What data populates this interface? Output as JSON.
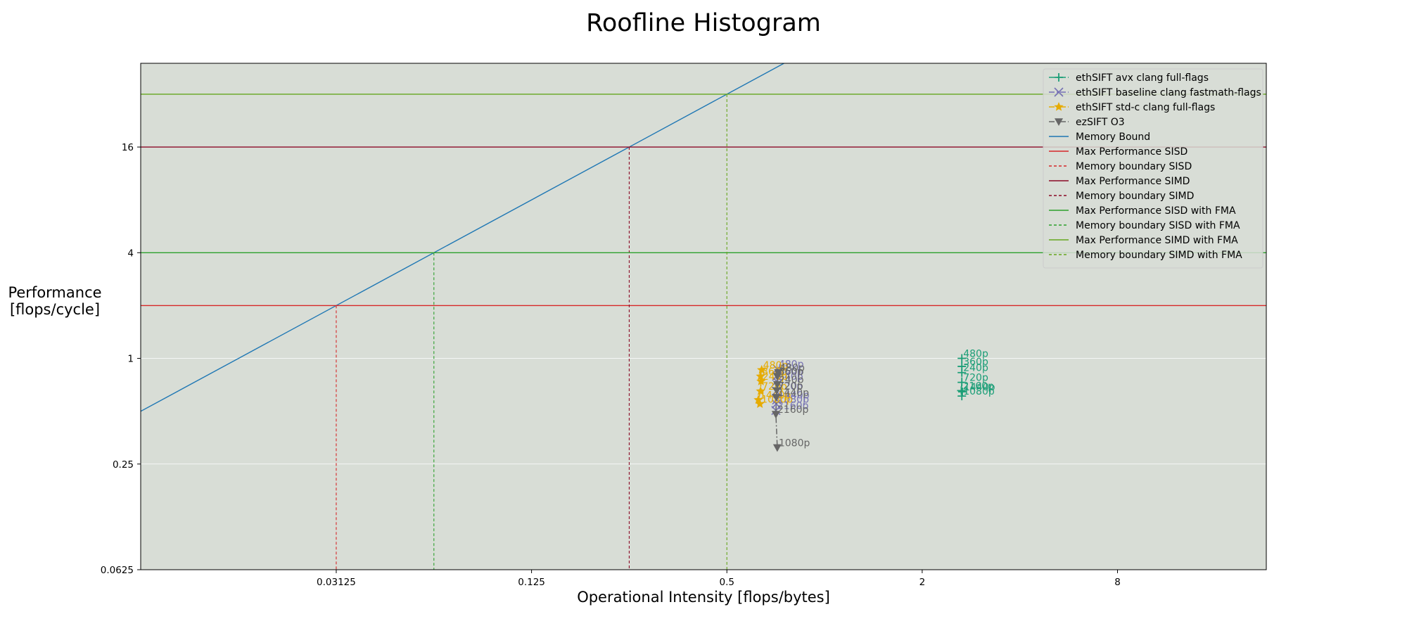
{
  "chart_data": {
    "type": "line",
    "title": "Roofline Histogram",
    "xlabel": "Operational Intensity [flops/bytes]",
    "ylabel_lines": [
      "Performance",
      "[flops/cycle]"
    ],
    "xscale": "log2",
    "yscale": "log2",
    "xlim": [
      0.0078,
      23
    ],
    "ylim": [
      0.0625,
      48
    ],
    "xticks": [
      {
        "v": 0.03125,
        "label": "0.03125"
      },
      {
        "v": 0.125,
        "label": "0.125"
      },
      {
        "v": 0.5,
        "label": "0.5"
      },
      {
        "v": 2,
        "label": "2"
      },
      {
        "v": 8,
        "label": "8"
      }
    ],
    "yticks": [
      {
        "v": 0.0625,
        "label": "0.0625"
      },
      {
        "v": 0.25,
        "label": "0.25"
      },
      {
        "v": 1,
        "label": "1"
      },
      {
        "v": 4,
        "label": "4"
      },
      {
        "v": 16,
        "label": "16"
      }
    ],
    "grid": "horizontal",
    "legend_position": "top-right",
    "background_color": "#d8ddd6",
    "series": [
      {
        "name": "ethSIFT avx clang full-flags",
        "color": "#1b9e77",
        "marker": "plus",
        "linestyle": "dashdot",
        "points": [
          {
            "x": 2.65,
            "y": 1.0,
            "label": "480p"
          },
          {
            "x": 2.65,
            "y": 0.9,
            "label": "360p"
          },
          {
            "x": 2.65,
            "y": 0.83,
            "label": "240p"
          },
          {
            "x": 2.65,
            "y": 0.73,
            "label": "720p"
          },
          {
            "x": 2.64,
            "y": 0.655,
            "label": "2160p"
          },
          {
            "x": 2.66,
            "y": 0.645,
            "label": "1440p"
          },
          {
            "x": 2.65,
            "y": 0.61,
            "label": "1080p"
          }
        ]
      },
      {
        "name": "ethSIFT baseline clang fastmath-flags",
        "color": "#7570b3",
        "marker": "x",
        "linestyle": "dashdot",
        "points": [
          {
            "x": 0.715,
            "y": 0.87,
            "label": "480p"
          },
          {
            "x": 0.712,
            "y": 0.79,
            "label": "360p"
          },
          {
            "x": 0.712,
            "y": 0.74,
            "label": "240p"
          },
          {
            "x": 0.71,
            "y": 0.65,
            "label": "720p"
          },
          {
            "x": 0.712,
            "y": 0.58,
            "label": "1440p"
          },
          {
            "x": 0.71,
            "y": 0.55,
            "label": "1080p"
          },
          {
            "x": 0.708,
            "y": 0.505,
            "label": "2160p"
          }
        ]
      },
      {
        "name": "ethSIFT std-c clang full-flags",
        "color": "#e6ab02",
        "marker": "star",
        "linestyle": "dashdot",
        "points": [
          {
            "x": 0.64,
            "y": 0.86,
            "label": "480p"
          },
          {
            "x": 0.635,
            "y": 0.79,
            "label": "360p"
          },
          {
            "x": 0.637,
            "y": 0.74,
            "label": "240p"
          },
          {
            "x": 0.635,
            "y": 0.65,
            "label": "720p"
          },
          {
            "x": 0.625,
            "y": 0.58,
            "label": "1440p"
          },
          {
            "x": 0.632,
            "y": 0.55,
            "label": "1080p"
          }
        ]
      },
      {
        "name": "ezSIFT O3",
        "color": "#666666",
        "marker": "triangle-down",
        "linestyle": "dashdot",
        "points": [
          {
            "x": 0.72,
            "y": 0.83,
            "label": "480p"
          },
          {
            "x": 0.715,
            "y": 0.79,
            "label": "360p"
          },
          {
            "x": 0.715,
            "y": 0.71,
            "label": "240p"
          },
          {
            "x": 0.712,
            "y": 0.655,
            "label": "720p"
          },
          {
            "x": 0.71,
            "y": 0.6,
            "label": "1440p"
          },
          {
            "x": 0.708,
            "y": 0.48,
            "label": "2160p"
          },
          {
            "x": 0.715,
            "y": 0.31,
            "label": "1080p"
          }
        ]
      }
    ],
    "rooflines": [
      {
        "name": "Memory Bound",
        "kind": "diagonal",
        "slope_bytes_per_cycle": 64,
        "color": "#1f77b4",
        "style": "solid"
      },
      {
        "name": "Max Performance SISD",
        "kind": "horizontal",
        "y": 2,
        "color": "#d62728",
        "style": "solid"
      },
      {
        "name": "Memory boundary SISD",
        "kind": "vertical",
        "x": 0.03125,
        "y_top": 2,
        "color": "#d62728",
        "style": "dashed"
      },
      {
        "name": "Max Performance SIMD",
        "kind": "horizontal",
        "y": 16,
        "color": "#8b0a26",
        "style": "solid"
      },
      {
        "name": "Memory boundary SIMD",
        "kind": "vertical",
        "x": 0.25,
        "y_top": 16,
        "color": "#8b0a26",
        "style": "dashed"
      },
      {
        "name": "Max Performance SISD with FMA",
        "kind": "horizontal",
        "y": 4,
        "color": "#2ca02c",
        "style": "solid"
      },
      {
        "name": "Memory boundary SISD with FMA",
        "kind": "vertical",
        "x": 0.0625,
        "y_top": 4,
        "color": "#2ca02c",
        "style": "dashed"
      },
      {
        "name": "Max Performance SIMD with FMA",
        "kind": "horizontal",
        "y": 32,
        "color": "#66a61e",
        "style": "solid"
      },
      {
        "name": "Memory boundary SIMD with FMA",
        "kind": "vertical",
        "x": 0.5,
        "y_top": 32,
        "color": "#66a61e",
        "style": "dashed"
      }
    ]
  }
}
